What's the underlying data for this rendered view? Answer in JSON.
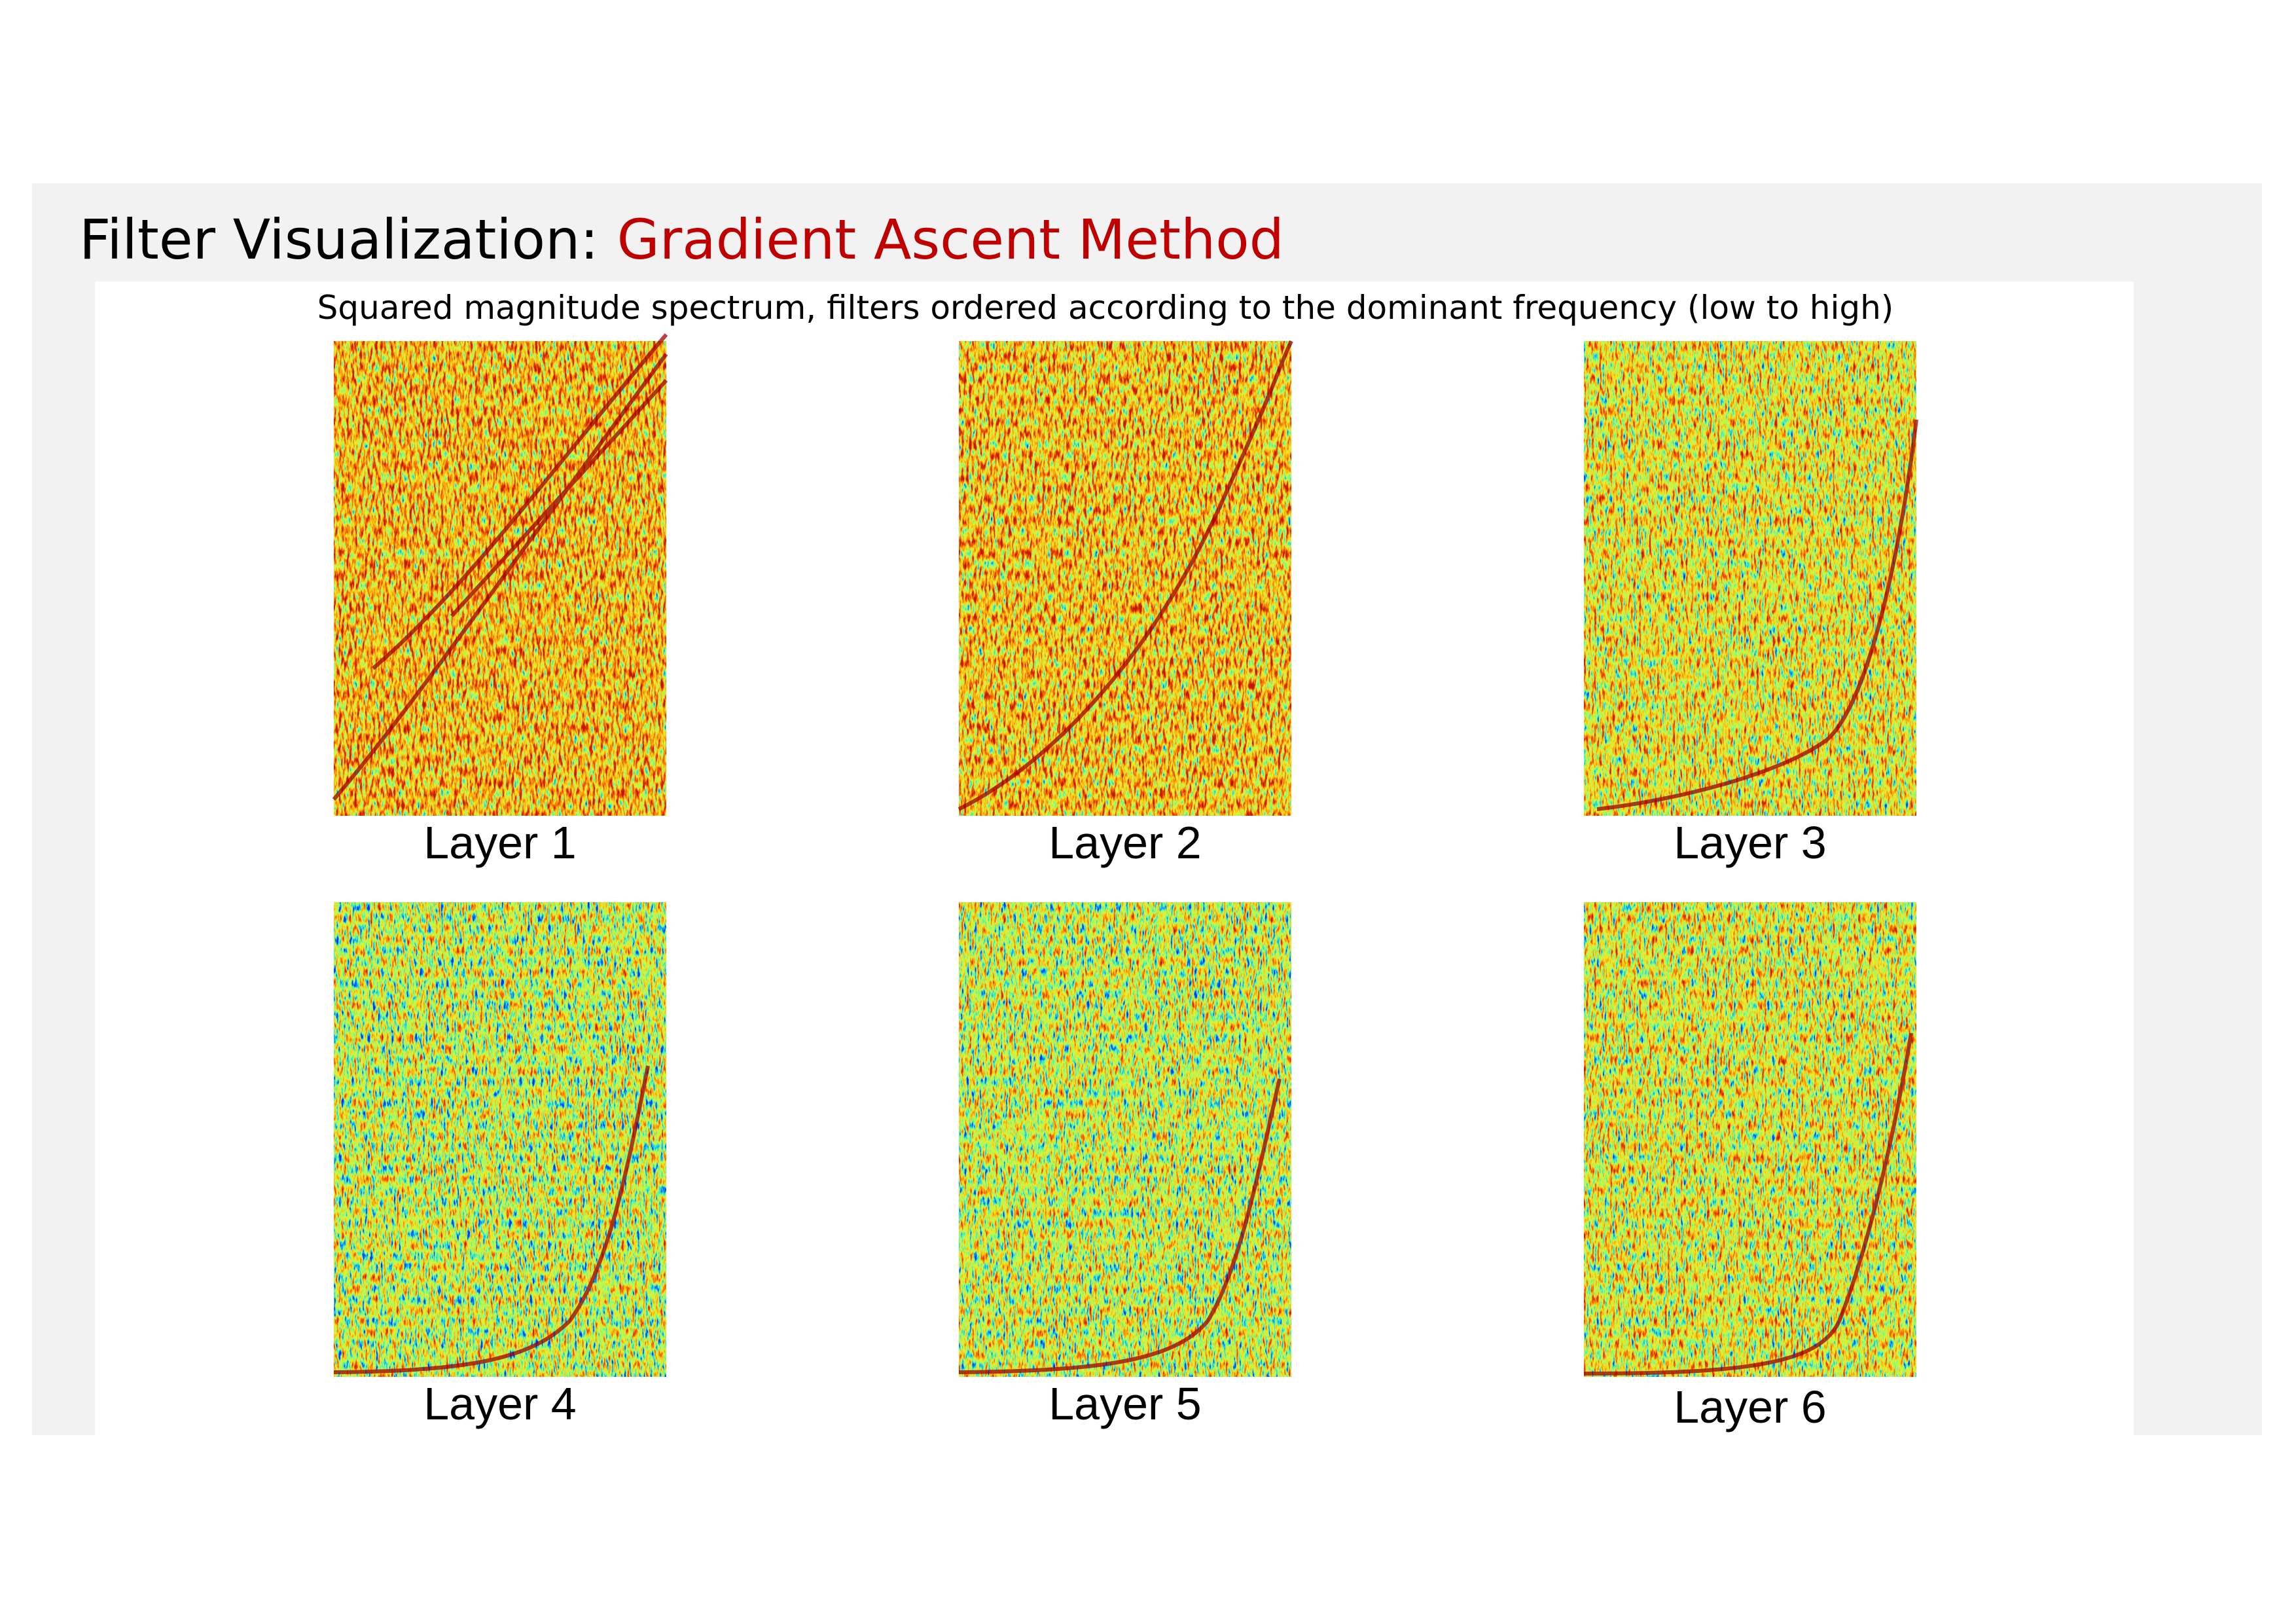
{
  "header": {
    "title": "Filter Visualization:",
    "title_highlight": "Gradient Ascent Method"
  },
  "subtitle": "Squared magnitude spectrum, filters ordered according to the dominant frequency (low to high)",
  "panels": [
    {
      "label": "Layer 1"
    },
    {
      "label": "Layer 2"
    },
    {
      "label": "Layer 3"
    },
    {
      "label": "Layer 4"
    },
    {
      "label": "Layer 5"
    },
    {
      "label": "Layer 6"
    }
  ]
}
